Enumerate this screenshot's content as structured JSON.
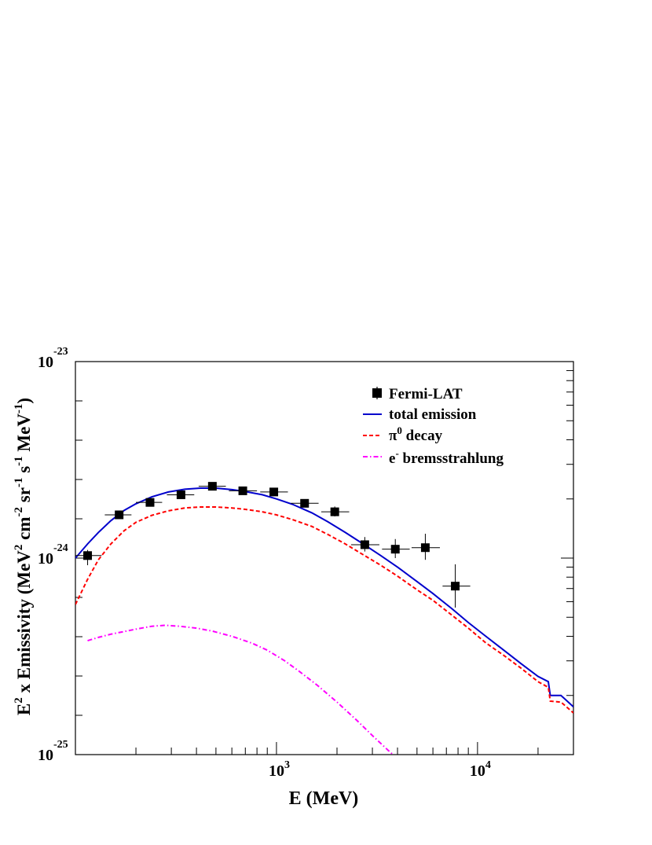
{
  "chart_data": {
    "type": "line",
    "xlabel": "E (MeV)",
    "ylabel": "E2 x Emissivity (MeV2 cm-2 sr-1 s-1 MeV-1)",
    "ylabel_parts": {
      "p1": "E",
      "p1_sup": "2",
      "p2": " x Emissivity  (MeV",
      "p2_sup": "2",
      "p3": " cm",
      "p3_sup": "-2",
      "p4": " sr",
      "p4_sup": "-1",
      "p5": " s",
      "p5_sup": "-1",
      "p6": " MeV",
      "p6_sup": "-1",
      "p7": ")"
    },
    "x_scale": "log",
    "y_scale": "log",
    "xlim": [
      100,
      30000
    ],
    "ylim": [
      1e-25,
      1e-23
    ],
    "x_tick_labels": [
      {
        "value": 1000,
        "base": "10",
        "exp": "3"
      },
      {
        "value": 10000,
        "base": "10",
        "exp": "4"
      }
    ],
    "y_tick_labels": [
      {
        "value": 1e-23,
        "base": "10",
        "exp": "-23"
      },
      {
        "value": 1e-24,
        "base": "10",
        "exp": "-24"
      },
      {
        "value": 1e-25,
        "base": "10",
        "exp": "-25"
      }
    ],
    "legend_position": "top-right",
    "legend": [
      {
        "key": "data",
        "label": "Fermi-LAT",
        "sup": ""
      },
      {
        "key": "total",
        "label": "total emission",
        "sup": ""
      },
      {
        "key": "pi0",
        "label": "π",
        "sup": "0",
        "label_after": " decay"
      },
      {
        "key": "brems",
        "label": "e",
        "sup": "-",
        "label_after": " bremsstrahlung"
      }
    ],
    "colors": {
      "data": "#000000",
      "total": "#0000cc",
      "pi0": "#ff0000",
      "brems": "#ff00ff"
    },
    "data_points": {
      "name": "Fermi-LAT",
      "points": [
        {
          "x": 115,
          "y": 1.03e-24,
          "xlo": 100,
          "xhi": 135,
          "ylo": 9.2e-25,
          "yhi": 1.1e-24
        },
        {
          "x": 165,
          "y": 1.66e-24,
          "xlo": 140,
          "xhi": 190,
          "ylo": 1.62e-24,
          "yhi": 1.7e-24
        },
        {
          "x": 235,
          "y": 1.92e-24,
          "xlo": 200,
          "xhi": 270,
          "ylo": 1.87e-24,
          "yhi": 1.97e-24
        },
        {
          "x": 335,
          "y": 2.1e-24,
          "xlo": 285,
          "xhi": 390,
          "ylo": 2.05e-24,
          "yhi": 2.15e-24
        },
        {
          "x": 480,
          "y": 2.32e-24,
          "xlo": 410,
          "xhi": 560,
          "ylo": 2.26e-24,
          "yhi": 2.38e-24
        },
        {
          "x": 680,
          "y": 2.2e-24,
          "xlo": 580,
          "xhi": 800,
          "ylo": 2.14e-24,
          "yhi": 2.26e-24
        },
        {
          "x": 970,
          "y": 2.17e-24,
          "xlo": 830,
          "xhi": 1140,
          "ylo": 2.1e-24,
          "yhi": 2.24e-24
        },
        {
          "x": 1380,
          "y": 1.9e-24,
          "xlo": 1180,
          "xhi": 1620,
          "ylo": 1.82e-24,
          "yhi": 1.98e-24
        },
        {
          "x": 1950,
          "y": 1.72e-24,
          "xlo": 1670,
          "xhi": 2300,
          "ylo": 1.63e-24,
          "yhi": 1.83e-24
        },
        {
          "x": 2750,
          "y": 1.17e-24,
          "xlo": 2350,
          "xhi": 3250,
          "ylo": 1.08e-24,
          "yhi": 1.28e-24
        },
        {
          "x": 3900,
          "y": 1.11e-24,
          "xlo": 3350,
          "xhi": 4600,
          "ylo": 1e-24,
          "yhi": 1.25e-24
        },
        {
          "x": 5500,
          "y": 1.13e-24,
          "xlo": 4700,
          "xhi": 6500,
          "ylo": 9.8e-25,
          "yhi": 1.33e-24
        },
        {
          "x": 7750,
          "y": 7.2e-25,
          "xlo": 6700,
          "xhi": 9200,
          "ylo": 5.6e-25,
          "yhi": 9.3e-25
        }
      ]
    },
    "series": [
      {
        "key": "total",
        "name": "total emission",
        "x": [
          100,
          115,
          130,
          150,
          175,
          200,
          240,
          290,
          350,
          420,
          500,
          600,
          700,
          850,
          1000,
          1200,
          1500,
          1800,
          2200,
          2700,
          3300,
          4000,
          5000,
          6000,
          7500,
          9000,
          11000,
          13500,
          16500,
          20000,
          22500,
          23000,
          26000,
          30000
        ],
        "y": [
          1e-24,
          1.18e-24,
          1.35e-24,
          1.55e-24,
          1.75e-24,
          1.89e-24,
          2.05e-24,
          2.17e-24,
          2.24e-24,
          2.27e-24,
          2.27e-24,
          2.23e-24,
          2.18e-24,
          2.1e-24,
          2e-24,
          1.88e-24,
          1.7e-24,
          1.53e-24,
          1.35e-24,
          1.18e-24,
          1.03e-24,
          9e-25,
          7.6e-25,
          6.6e-25,
          5.5e-25,
          4.7e-25,
          4e-25,
          3.4e-25,
          2.9e-25,
          2.5e-25,
          2.35e-25,
          2e-25,
          2e-25,
          1.75e-25
        ]
      },
      {
        "key": "pi0",
        "name": "π0 decay",
        "x": [
          100,
          115,
          130,
          150,
          175,
          200,
          240,
          290,
          350,
          420,
          500,
          600,
          700,
          850,
          1000,
          1200,
          1500,
          1800,
          2200,
          2700,
          3300,
          4000,
          5000,
          6000,
          7500,
          9000,
          11000,
          13500,
          16500,
          20000,
          22500,
          23000,
          26000,
          30000
        ],
        "y": [
          5.8e-25,
          7.8e-25,
          9.8e-25,
          1.18e-24,
          1.38e-24,
          1.52e-24,
          1.65e-24,
          1.74e-24,
          1.8e-24,
          1.82e-24,
          1.82e-24,
          1.8e-24,
          1.77e-24,
          1.72e-24,
          1.66e-24,
          1.57e-24,
          1.45e-24,
          1.32e-24,
          1.18e-24,
          1.04e-24,
          9.2e-25,
          8.1e-25,
          6.9e-25,
          6.1e-25,
          5.1e-25,
          4.4e-25,
          3.7e-25,
          3.2e-25,
          2.75e-25,
          2.35e-25,
          2.2e-25,
          1.87e-25,
          1.85e-25,
          1.63e-25
        ]
      },
      {
        "key": "brems",
        "name": "e- bremsstrahlung",
        "x": [
          115,
          130,
          150,
          175,
          200,
          240,
          280,
          330,
          400,
          480,
          600,
          750,
          900,
          1100,
          1300,
          1600,
          2000,
          2500,
          3000,
          3600,
          3800
        ],
        "y": [
          3.8e-25,
          3.95e-25,
          4.1e-25,
          4.23e-25,
          4.35e-25,
          4.5e-25,
          4.55e-25,
          4.5e-25,
          4.4e-25,
          4.25e-25,
          4e-25,
          3.7e-25,
          3.4e-25,
          3e-25,
          2.65e-25,
          2.25e-25,
          1.85e-25,
          1.5e-25,
          1.25e-25,
          1.05e-25,
          1e-25
        ]
      }
    ]
  }
}
